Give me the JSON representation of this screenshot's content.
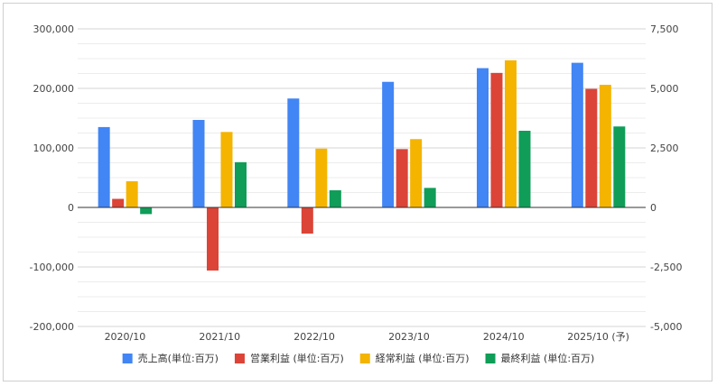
{
  "chart_data": {
    "type": "bar",
    "categories": [
      "2020/10",
      "2021/10",
      "2022/10",
      "2023/10",
      "2024/10",
      "2025/10 (予)"
    ],
    "series": [
      {
        "name": "売上高(単位:百万)",
        "color": "#4285f4",
        "axis": "left",
        "values": [
          135000,
          147000,
          183000,
          211000,
          234000,
          243000
        ]
      },
      {
        "name": "営業利益 (単位:百万)",
        "color": "#db4437",
        "axis": "right",
        "values": [
          360,
          -2650,
          -1100,
          2450,
          5650,
          4980
        ]
      },
      {
        "name": "経常利益 (単位:百万)",
        "color": "#f4b400",
        "axis": "right",
        "values": [
          1100,
          3170,
          2470,
          2870,
          6180,
          5150
        ]
      },
      {
        "name": "最終利益 (単位:百万)",
        "color": "#0f9d58",
        "axis": "right",
        "values": [
          -280,
          1900,
          720,
          820,
          3220,
          3400
        ]
      }
    ],
    "left_axis": {
      "min": -200000,
      "max": 300000,
      "ticks": [
        300000,
        200000,
        100000,
        0,
        -100000,
        -200000
      ],
      "tick_labels": [
        "300,000",
        "200,000",
        "100,000",
        "0",
        "-100,000",
        "-200,000"
      ]
    },
    "right_axis": {
      "min": -5000,
      "max": 7500,
      "ticks": [
        7500,
        5000,
        2500,
        0,
        -2500,
        -5000
      ],
      "tick_labels": [
        "7,500",
        "5,000",
        "2,500",
        "0",
        "-2,500",
        "-5,000"
      ]
    },
    "title": "",
    "xlabel": "",
    "ylabel": "",
    "grid": true,
    "legend_position": "bottom"
  }
}
